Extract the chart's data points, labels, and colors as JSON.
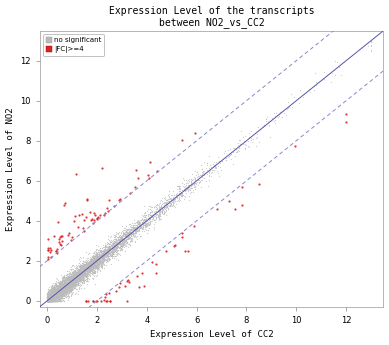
{
  "title_line1": "Expression Level of the transcripts",
  "title_line2": "between NO2_vs_CC2",
  "xlabel": "Expression Level of CC2",
  "ylabel": "Expression Level of NO2",
  "xlim": [
    -0.3,
    13.5
  ],
  "ylim": [
    -0.3,
    13.5
  ],
  "xticks": [
    0,
    2,
    4,
    6,
    8,
    10,
    12
  ],
  "yticks": [
    0,
    2,
    4,
    6,
    8,
    10,
    12
  ],
  "dot_color_nonsig": "#bbbbbb",
  "dot_color_sig": "#dd2222",
  "line_color_diag": "#5555aa",
  "line_color_fold": "#8888cc",
  "legend_nonsig": "no significant",
  "legend_sig": "|FC|>=4",
  "background_color": "#ffffff",
  "n_nonsig": 6000,
  "n_sig": 120,
  "seed": 99,
  "dot_size_nonsig": 0.8,
  "dot_size_sig": 2.5,
  "fold_change": 2.0
}
